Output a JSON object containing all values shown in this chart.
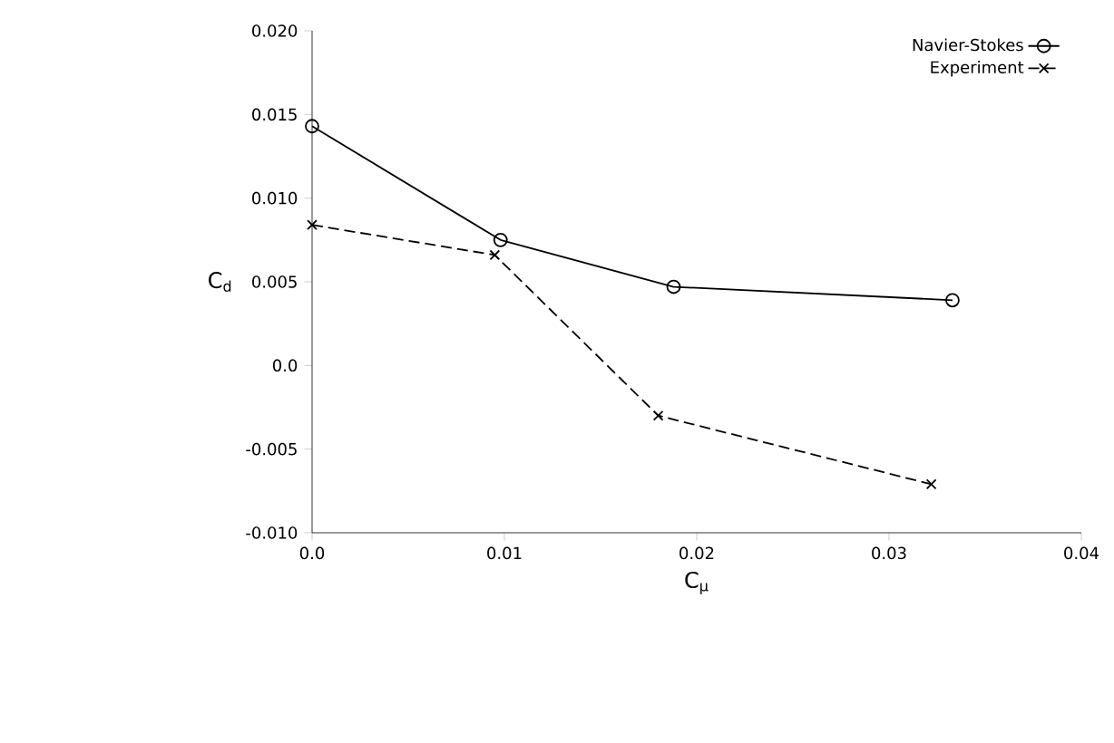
{
  "chart_data": {
    "type": "line",
    "xlabel": "C$_{μ}$",
    "ylabel": "C$_{d}$",
    "series": [
      {
        "name": "Navier-Stokes",
        "color": "#000000",
        "marker": "circle",
        "line_style": "solid",
        "x": [
          0.0,
          0.0098,
          0.0188,
          0.0333
        ],
        "values": [
          0.0143,
          0.0075,
          0.0047,
          0.0039
        ]
      },
      {
        "name": "Experiment",
        "color": "#000000",
        "marker": "cross",
        "line_style": "dashed",
        "x": [
          0.0,
          0.0095,
          0.018,
          0.0322
        ],
        "values": [
          0.0084,
          0.0066,
          -0.003,
          -0.0071
        ]
      }
    ],
    "xlim": [
      0.0,
      0.04
    ],
    "ylim": [
      -0.01,
      0.02
    ],
    "xticks": [
      {
        "value": 0.0,
        "label": "0.0"
      },
      0.01,
      0.02,
      0.03,
      0.04
    ],
    "yticks": [
      {
        "value": -0.01,
        "label": "-0.010"
      },
      {
        "value": -0.005,
        "label": "-0.005"
      },
      {
        "value": 0.0,
        "label": "0.0"
      },
      {
        "value": 0.005,
        "label": "0.005"
      },
      {
        "value": 0.01,
        "label": "0.010"
      },
      {
        "value": 0.015,
        "label": "0.015"
      },
      {
        "value": 0.02,
        "label": "0.020"
      }
    ],
    "grid": false,
    "legend": "top right"
  }
}
